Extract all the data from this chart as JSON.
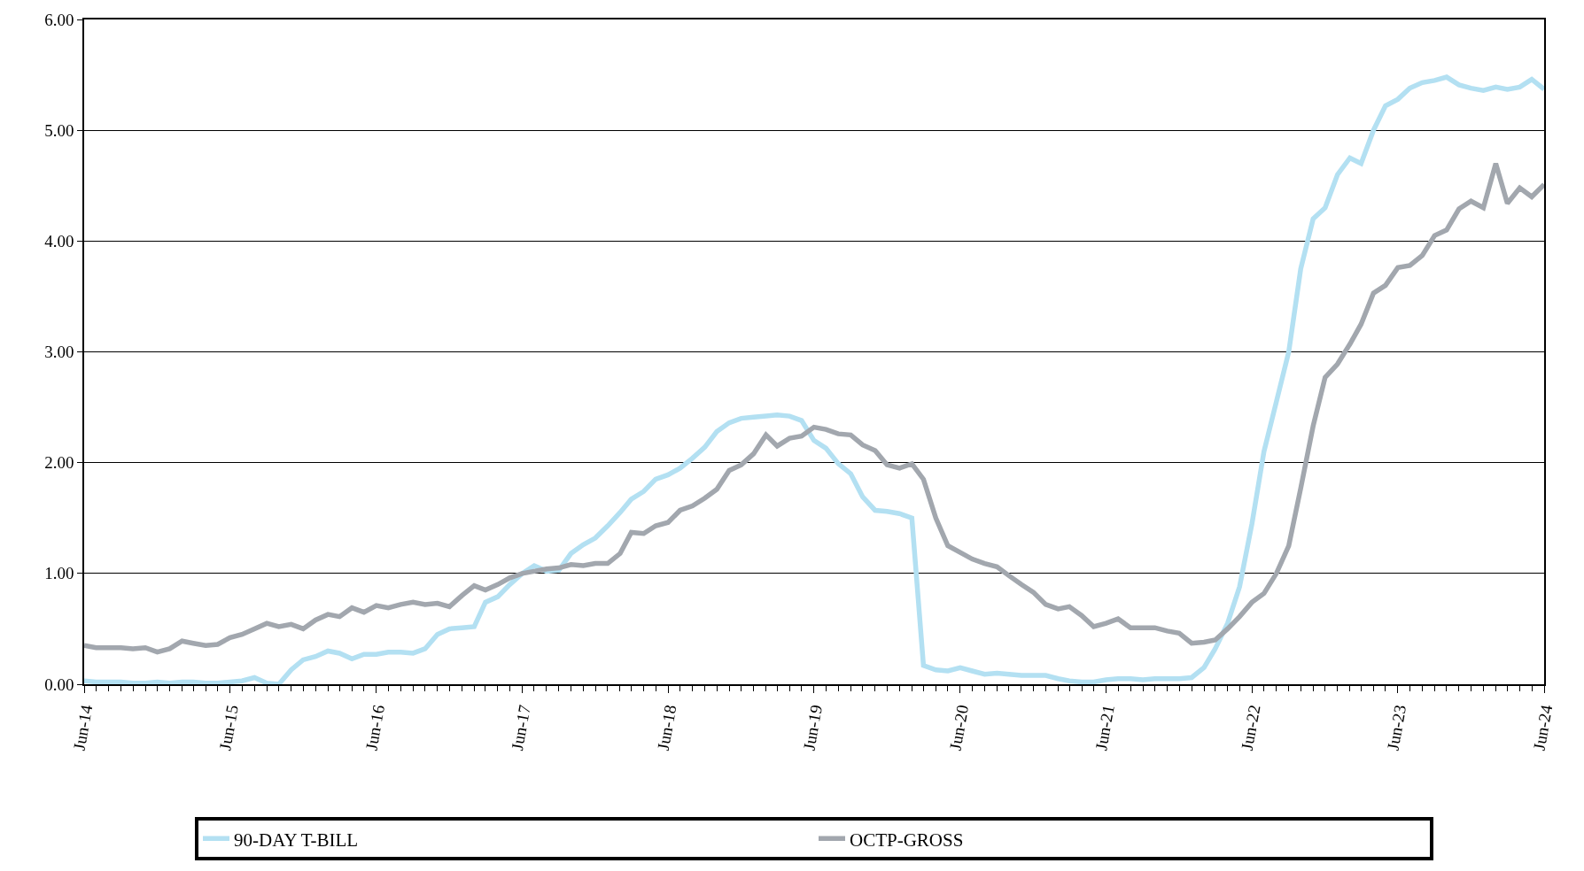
{
  "chart_data": {
    "type": "line",
    "x": [
      "2014-06",
      "2014-07",
      "2014-08",
      "2014-09",
      "2014-10",
      "2014-11",
      "2014-12",
      "2015-01",
      "2015-02",
      "2015-03",
      "2015-04",
      "2015-05",
      "2015-06",
      "2015-07",
      "2015-08",
      "2015-09",
      "2015-10",
      "2015-11",
      "2015-12",
      "2016-01",
      "2016-02",
      "2016-03",
      "2016-04",
      "2016-05",
      "2016-06",
      "2016-07",
      "2016-08",
      "2016-09",
      "2016-10",
      "2016-11",
      "2016-12",
      "2017-01",
      "2017-02",
      "2017-03",
      "2017-04",
      "2017-05",
      "2017-06",
      "2017-07",
      "2017-08",
      "2017-09",
      "2017-10",
      "2017-11",
      "2017-12",
      "2018-01",
      "2018-02",
      "2018-03",
      "2018-04",
      "2018-05",
      "2018-06",
      "2018-07",
      "2018-08",
      "2018-09",
      "2018-10",
      "2018-11",
      "2018-12",
      "2019-01",
      "2019-02",
      "2019-03",
      "2019-04",
      "2019-05",
      "2019-06",
      "2019-07",
      "2019-08",
      "2019-09",
      "2019-10",
      "2019-11",
      "2019-12",
      "2020-01",
      "2020-02",
      "2020-03",
      "2020-04",
      "2020-05",
      "2020-06",
      "2020-07",
      "2020-08",
      "2020-09",
      "2020-10",
      "2020-11",
      "2020-12",
      "2021-01",
      "2021-02",
      "2021-03",
      "2021-04",
      "2021-05",
      "2021-06",
      "2021-07",
      "2021-08",
      "2021-09",
      "2021-10",
      "2021-11",
      "2021-12",
      "2022-01",
      "2022-02",
      "2022-03",
      "2022-04",
      "2022-05",
      "2022-06",
      "2022-07",
      "2022-08",
      "2022-09",
      "2022-10",
      "2022-11",
      "2022-12",
      "2023-01",
      "2023-02",
      "2023-03",
      "2023-04",
      "2023-05",
      "2023-06",
      "2023-07",
      "2023-08",
      "2023-09",
      "2023-10",
      "2023-11",
      "2023-12",
      "2024-01",
      "2024-02",
      "2024-03",
      "2024-04",
      "2024-05",
      "2024-06"
    ],
    "series": [
      {
        "name": "90-DAY T-BILL",
        "color": "#b3e0f2",
        "values": [
          0.03,
          0.02,
          0.02,
          0.02,
          0.01,
          0.01,
          0.02,
          0.01,
          0.02,
          0.02,
          0.01,
          0.01,
          0.02,
          0.03,
          0.06,
          0.01,
          0.0,
          0.13,
          0.22,
          0.25,
          0.3,
          0.28,
          0.23,
          0.27,
          0.27,
          0.29,
          0.29,
          0.28,
          0.32,
          0.45,
          0.5,
          0.51,
          0.52,
          0.74,
          0.79,
          0.9,
          1.0,
          1.07,
          1.02,
          1.03,
          1.18,
          1.26,
          1.32,
          1.43,
          1.55,
          1.67,
          1.74,
          1.85,
          1.89,
          1.95,
          2.04,
          2.14,
          2.28,
          2.36,
          2.4,
          2.41,
          2.42,
          2.43,
          2.42,
          2.38,
          2.2,
          2.13,
          1.99,
          1.9,
          1.69,
          1.57,
          1.56,
          1.54,
          1.5,
          0.17,
          0.13,
          0.12,
          0.15,
          0.12,
          0.09,
          0.1,
          0.09,
          0.08,
          0.08,
          0.08,
          0.05,
          0.03,
          0.02,
          0.02,
          0.04,
          0.05,
          0.05,
          0.04,
          0.05,
          0.05,
          0.05,
          0.06,
          0.15,
          0.32,
          0.55,
          0.88,
          1.45,
          2.1,
          2.55,
          3.0,
          3.75,
          4.2,
          4.3,
          4.6,
          4.75,
          4.7,
          5.0,
          5.22,
          5.28,
          5.38,
          5.43,
          5.45,
          5.48,
          5.41,
          5.38,
          5.36,
          5.39,
          5.37,
          5.39,
          5.46,
          5.37
        ]
      },
      {
        "name": "OCTP-GROSS",
        "color": "#a2a7ae",
        "values": [
          0.35,
          0.33,
          0.33,
          0.33,
          0.32,
          0.33,
          0.29,
          0.32,
          0.39,
          0.37,
          0.35,
          0.36,
          0.42,
          0.45,
          0.5,
          0.55,
          0.52,
          0.54,
          0.5,
          0.58,
          0.63,
          0.61,
          0.69,
          0.65,
          0.71,
          0.69,
          0.72,
          0.74,
          0.72,
          0.73,
          0.7,
          0.8,
          0.89,
          0.85,
          0.9,
          0.96,
          1.0,
          1.02,
          1.04,
          1.05,
          1.08,
          1.07,
          1.09,
          1.09,
          1.18,
          1.37,
          1.36,
          1.43,
          1.46,
          1.57,
          1.61,
          1.68,
          1.76,
          1.93,
          1.98,
          2.08,
          2.25,
          2.15,
          2.22,
          2.24,
          2.32,
          2.3,
          2.26,
          2.25,
          2.16,
          2.11,
          1.98,
          1.95,
          1.99,
          1.85,
          1.5,
          1.25,
          1.19,
          1.13,
          1.09,
          1.06,
          0.98,
          0.9,
          0.83,
          0.72,
          0.68,
          0.7,
          0.62,
          0.52,
          0.55,
          0.59,
          0.51,
          0.51,
          0.51,
          0.48,
          0.46,
          0.37,
          0.38,
          0.4,
          0.5,
          0.61,
          0.74,
          0.82,
          1.0,
          1.25,
          1.77,
          2.33,
          2.77,
          2.89,
          3.07,
          3.25,
          3.53,
          3.6,
          3.76,
          3.78,
          3.87,
          4.05,
          4.1,
          4.29,
          4.36,
          4.3,
          4.7,
          4.34,
          4.48,
          4.4,
          4.51
        ]
      }
    ],
    "xlim": [
      "2014-06",
      "2024-06"
    ],
    "xticks": [
      {
        "value": "2014-06",
        "label": "Jun-14"
      },
      {
        "value": "2015-06",
        "label": "Jun-15"
      },
      {
        "value": "2016-06",
        "label": "Jun-16"
      },
      {
        "value": "2017-06",
        "label": "Jun-17"
      },
      {
        "value": "2018-06",
        "label": "Jun-18"
      },
      {
        "value": "2019-06",
        "label": "Jun-19"
      },
      {
        "value": "2020-06",
        "label": "Jun-20"
      },
      {
        "value": "2021-06",
        "label": "Jun-21"
      },
      {
        "value": "2022-06",
        "label": "Jun-22"
      },
      {
        "value": "2023-06",
        "label": "Jun-23"
      },
      {
        "value": "2024-06",
        "label": "Jun-24"
      }
    ],
    "ylim": [
      0,
      6
    ],
    "yticks": [
      {
        "value": 0,
        "label": "0.00"
      },
      {
        "value": 1,
        "label": "1.00"
      },
      {
        "value": 2,
        "label": "2.00"
      },
      {
        "value": 3,
        "label": "3.00"
      },
      {
        "value": 4,
        "label": "4.00"
      },
      {
        "value": 5,
        "label": "5.00"
      },
      {
        "value": 6,
        "label": "6.00"
      }
    ],
    "grid": "y",
    "legend": "bottom",
    "marker": "none",
    "line_style": "solid"
  }
}
